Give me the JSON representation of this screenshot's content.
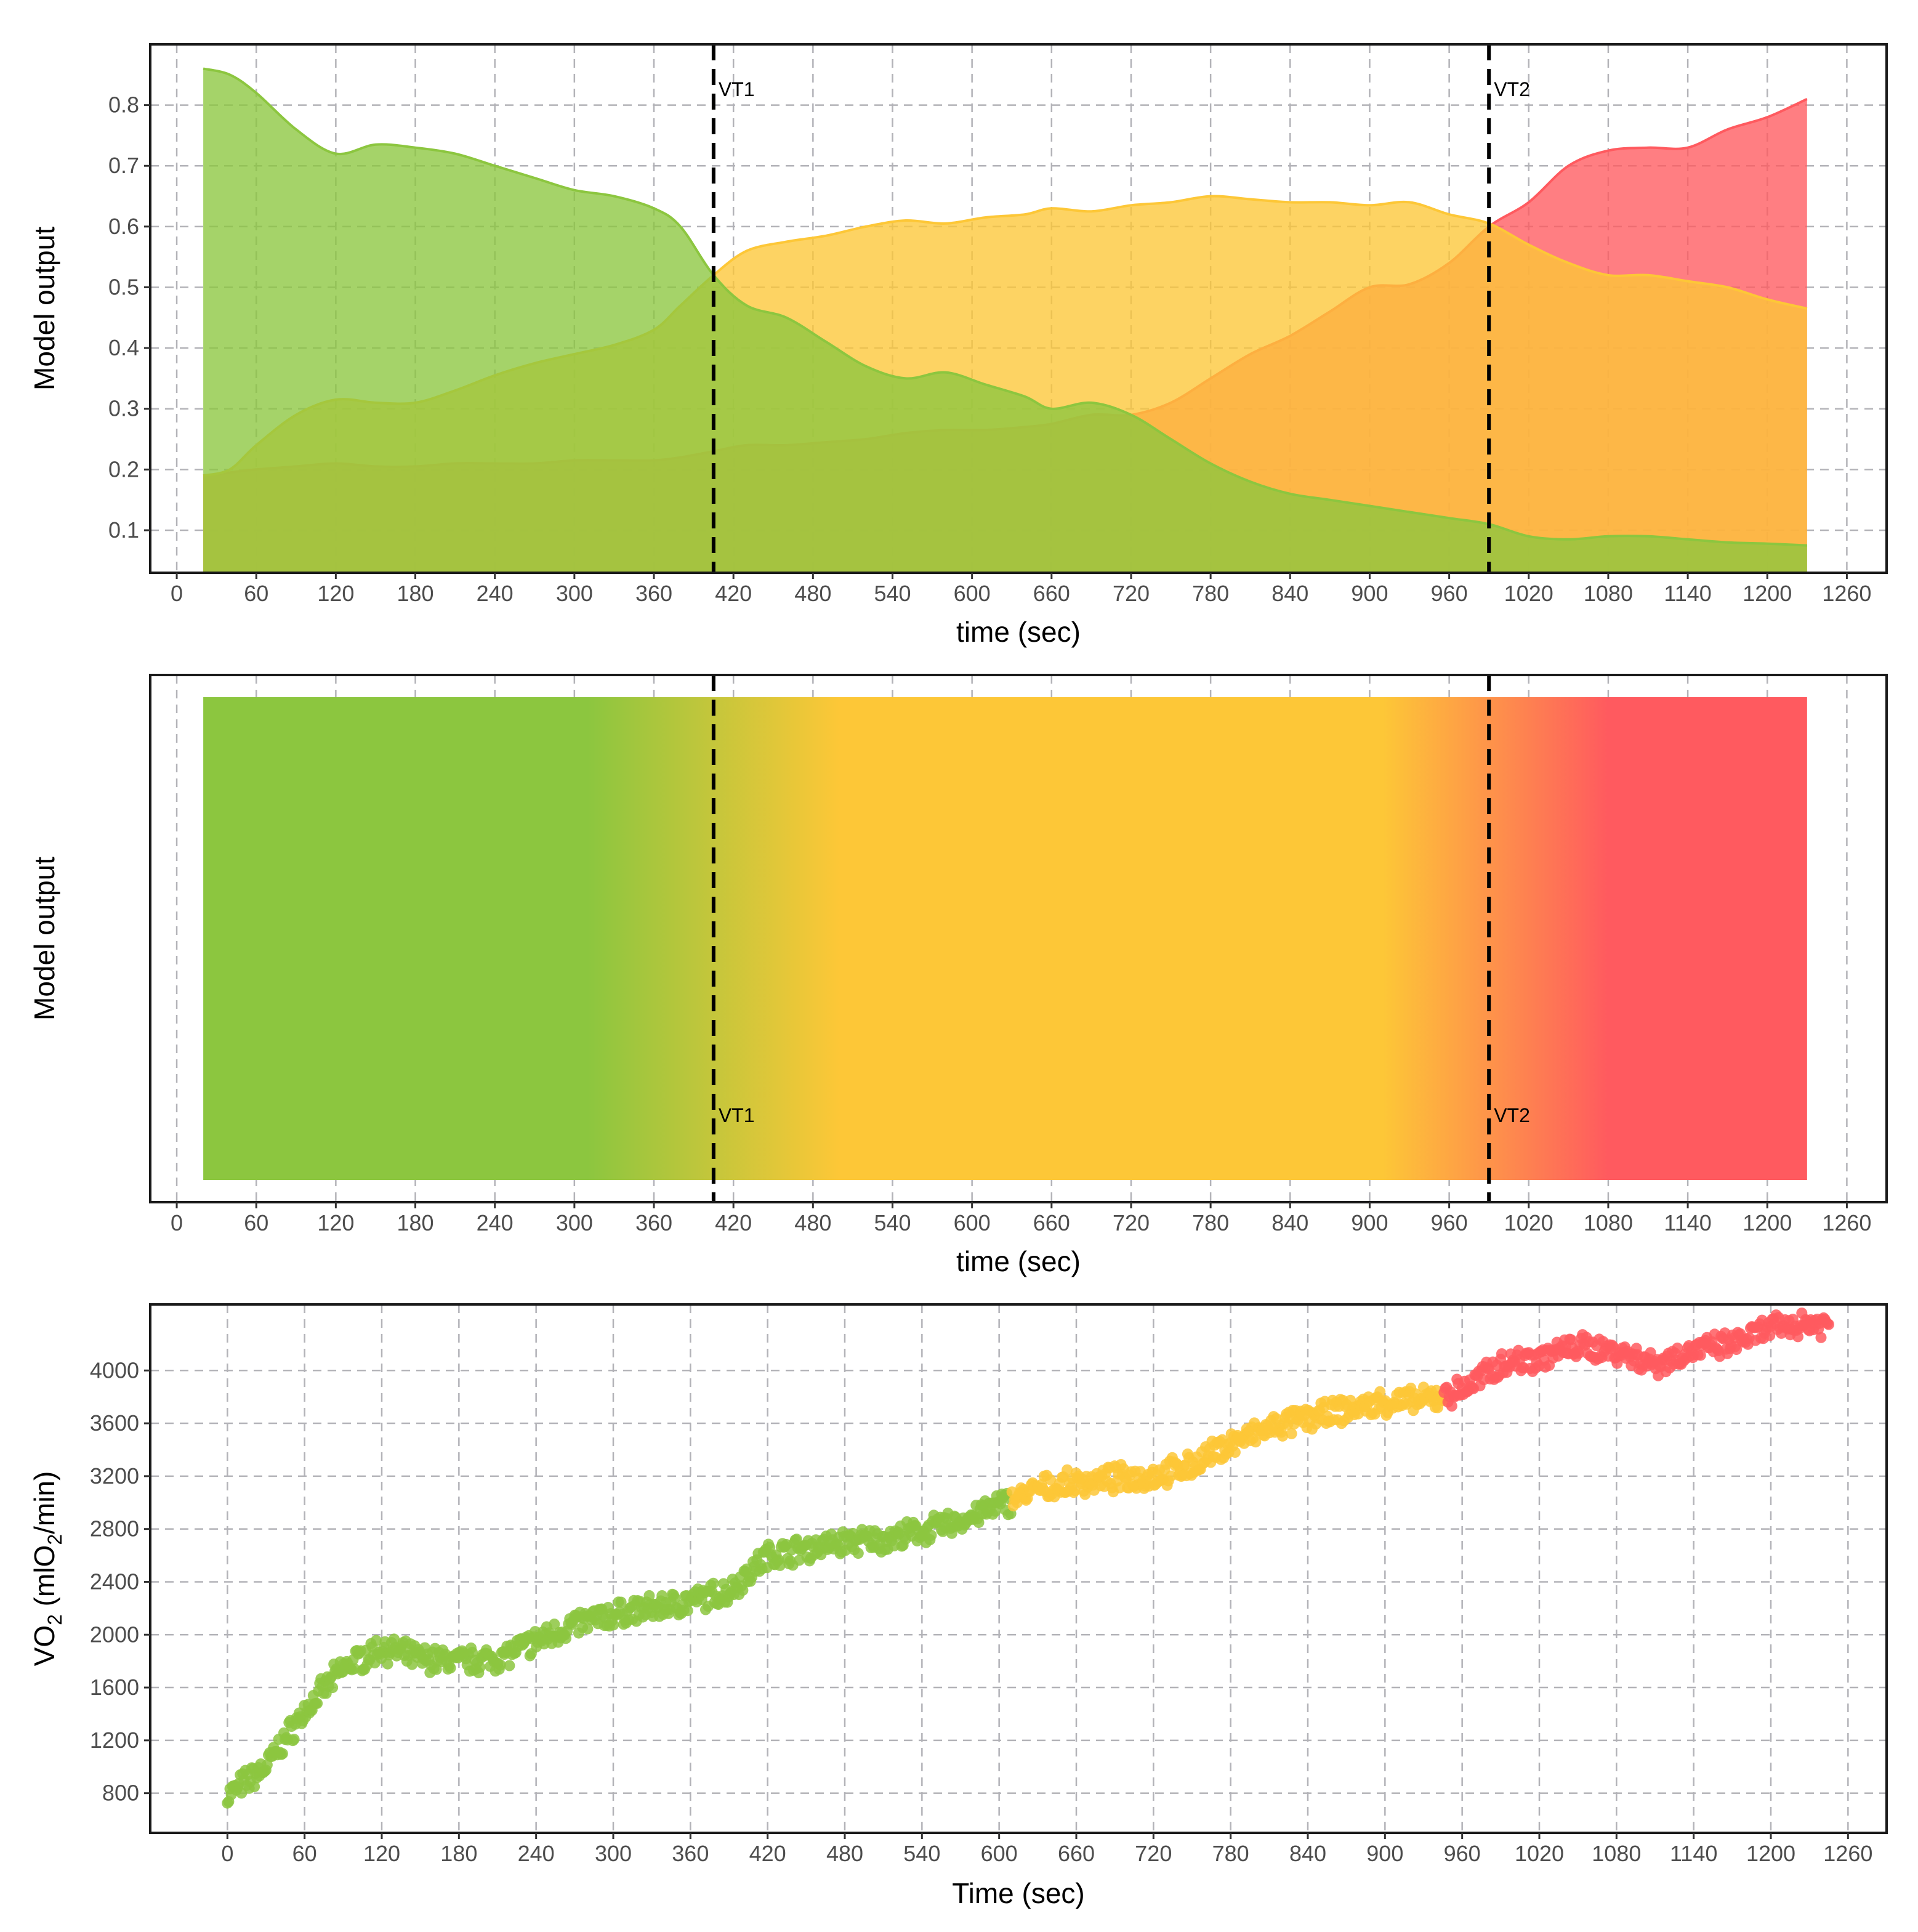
{
  "colors": {
    "green": "#8cc63f",
    "yellow": "#fdc737",
    "red": "#ff5a5f",
    "olive": "#a3b03a",
    "grid": "#b3b3b8"
  },
  "chart_data": [
    {
      "type": "area",
      "title": "",
      "xlabel": "time (sec)",
      "ylabel": "Model output",
      "xlim": [
        -20,
        1290
      ],
      "ylim": [
        0.03,
        0.9
      ],
      "x_ticks": [
        0,
        60,
        120,
        180,
        240,
        300,
        360,
        420,
        480,
        540,
        600,
        660,
        720,
        780,
        840,
        900,
        960,
        1020,
        1080,
        1140,
        1200,
        1260
      ],
      "y_ticks": [
        0.1,
        0.2,
        0.3,
        0.4,
        0.5,
        0.6,
        0.7,
        0.8
      ],
      "vlines": [
        {
          "x": 405,
          "label": "VT1"
        },
        {
          "x": 990,
          "label": "VT2"
        }
      ],
      "series": [
        {
          "name": "green",
          "color": "#8cc63f",
          "x": [
            20,
            40,
            60,
            90,
            120,
            150,
            180,
            210,
            240,
            270,
            300,
            330,
            360,
            380,
            405,
            430,
            460,
            490,
            520,
            550,
            580,
            610,
            640,
            660,
            690,
            720,
            750,
            780,
            810,
            840,
            870,
            900,
            930,
            960,
            990,
            1020,
            1050,
            1080,
            1110,
            1140,
            1170,
            1200,
            1230
          ],
          "values": [
            0.86,
            0.85,
            0.82,
            0.76,
            0.72,
            0.735,
            0.73,
            0.72,
            0.7,
            0.68,
            0.66,
            0.65,
            0.63,
            0.6,
            0.52,
            0.47,
            0.45,
            0.41,
            0.37,
            0.35,
            0.36,
            0.34,
            0.32,
            0.3,
            0.31,
            0.29,
            0.25,
            0.21,
            0.18,
            0.16,
            0.15,
            0.14,
            0.13,
            0.12,
            0.11,
            0.09,
            0.085,
            0.09,
            0.09,
            0.085,
            0.08,
            0.078,
            0.075
          ]
        },
        {
          "name": "yellow",
          "color": "#fdc737",
          "x": [
            20,
            40,
            60,
            90,
            120,
            150,
            180,
            210,
            240,
            270,
            300,
            330,
            360,
            380,
            405,
            430,
            460,
            490,
            520,
            550,
            580,
            610,
            640,
            660,
            690,
            720,
            750,
            780,
            810,
            840,
            870,
            900,
            930,
            960,
            990,
            1020,
            1050,
            1080,
            1110,
            1140,
            1170,
            1200,
            1230
          ],
          "values": [
            0.19,
            0.2,
            0.24,
            0.29,
            0.315,
            0.31,
            0.31,
            0.33,
            0.355,
            0.375,
            0.39,
            0.405,
            0.43,
            0.47,
            0.52,
            0.56,
            0.575,
            0.585,
            0.6,
            0.61,
            0.605,
            0.615,
            0.62,
            0.63,
            0.625,
            0.635,
            0.64,
            0.65,
            0.645,
            0.64,
            0.64,
            0.635,
            0.64,
            0.62,
            0.605,
            0.57,
            0.54,
            0.52,
            0.52,
            0.51,
            0.5,
            0.48,
            0.465
          ]
        },
        {
          "name": "red",
          "color": "#ff5a5f",
          "x": [
            20,
            40,
            60,
            90,
            120,
            150,
            180,
            210,
            240,
            270,
            300,
            330,
            360,
            380,
            405,
            430,
            460,
            490,
            520,
            550,
            580,
            610,
            640,
            660,
            690,
            720,
            750,
            780,
            810,
            840,
            870,
            900,
            930,
            960,
            990,
            1020,
            1050,
            1080,
            1110,
            1140,
            1170,
            1200,
            1230
          ],
          "values": [
            0.19,
            0.195,
            0.2,
            0.205,
            0.21,
            0.205,
            0.205,
            0.21,
            0.21,
            0.21,
            0.215,
            0.215,
            0.215,
            0.22,
            0.23,
            0.24,
            0.24,
            0.245,
            0.25,
            0.26,
            0.265,
            0.265,
            0.27,
            0.275,
            0.29,
            0.29,
            0.31,
            0.35,
            0.39,
            0.42,
            0.46,
            0.5,
            0.505,
            0.54,
            0.6,
            0.64,
            0.7,
            0.725,
            0.73,
            0.73,
            0.76,
            0.78,
            0.81
          ]
        }
      ]
    },
    {
      "type": "heatmap",
      "title": "",
      "xlabel": "time (sec)",
      "ylabel": "Model output",
      "xlim": [
        -20,
        1290
      ],
      "x_ticks": [
        0,
        60,
        120,
        180,
        240,
        300,
        360,
        420,
        480,
        540,
        600,
        660,
        720,
        780,
        840,
        900,
        960,
        1020,
        1080,
        1140,
        1200,
        1260
      ],
      "vlines": [
        {
          "x": 405,
          "label": "VT1"
        },
        {
          "x": 990,
          "label": "VT2"
        }
      ],
      "x_range": [
        20,
        1230
      ],
      "color_stops": [
        {
          "x": 20,
          "color": "#8cc63f"
        },
        {
          "x": 310,
          "color": "#8cc63f"
        },
        {
          "x": 500,
          "color": "#fdc737"
        },
        {
          "x": 910,
          "color": "#fdc737"
        },
        {
          "x": 1080,
          "color": "#ff5a5f"
        },
        {
          "x": 1230,
          "color": "#ff5a5f"
        }
      ]
    },
    {
      "type": "scatter",
      "title": "",
      "xlabel": "Time (sec)",
      "ylabel": "VO2 (mlO2/min)",
      "ylabel_parts": {
        "base": "VO",
        "sub": "2",
        "mid": " (mlO",
        "sub2": "2",
        "end": "/min)"
      },
      "xlim": [
        -60,
        1290
      ],
      "ylim": [
        500,
        4500
      ],
      "x_ticks": [
        0,
        60,
        120,
        180,
        240,
        300,
        360,
        420,
        480,
        540,
        600,
        660,
        720,
        780,
        840,
        900,
        960,
        1020,
        1080,
        1140,
        1200,
        1260
      ],
      "y_ticks": [
        800,
        1200,
        1600,
        2000,
        2400,
        2800,
        3200,
        3600,
        4000
      ],
      "x_range": [
        0,
        1245
      ],
      "trend_x": [
        0,
        30,
        60,
        90,
        120,
        150,
        180,
        210,
        240,
        270,
        300,
        330,
        360,
        390,
        420,
        450,
        480,
        510,
        540,
        570,
        600,
        630,
        660,
        690,
        720,
        750,
        780,
        810,
        840,
        870,
        900,
        930,
        960,
        990,
        1020,
        1050,
        1080,
        1110,
        1140,
        1170,
        1200,
        1230,
        1245
      ],
      "trend_y": [
        780,
        1000,
        1420,
        1750,
        1900,
        1820,
        1800,
        1820,
        1950,
        2080,
        2150,
        2200,
        2250,
        2330,
        2600,
        2650,
        2700,
        2720,
        2780,
        2860,
        2980,
        3100,
        3150,
        3180,
        3200,
        3280,
        3450,
        3560,
        3640,
        3700,
        3760,
        3770,
        3850,
        4050,
        4100,
        4180,
        4150,
        4050,
        4150,
        4200,
        4320,
        4360,
        4350
      ],
      "segments": [
        {
          "name": "green",
          "color": "#8cc63f",
          "from": 0,
          "to": 610
        },
        {
          "name": "yellow",
          "color": "#fdc737",
          "from": 610,
          "to": 945
        },
        {
          "name": "red",
          "color": "#ff5a5f",
          "from": 945,
          "to": 1245
        }
      ]
    }
  ]
}
